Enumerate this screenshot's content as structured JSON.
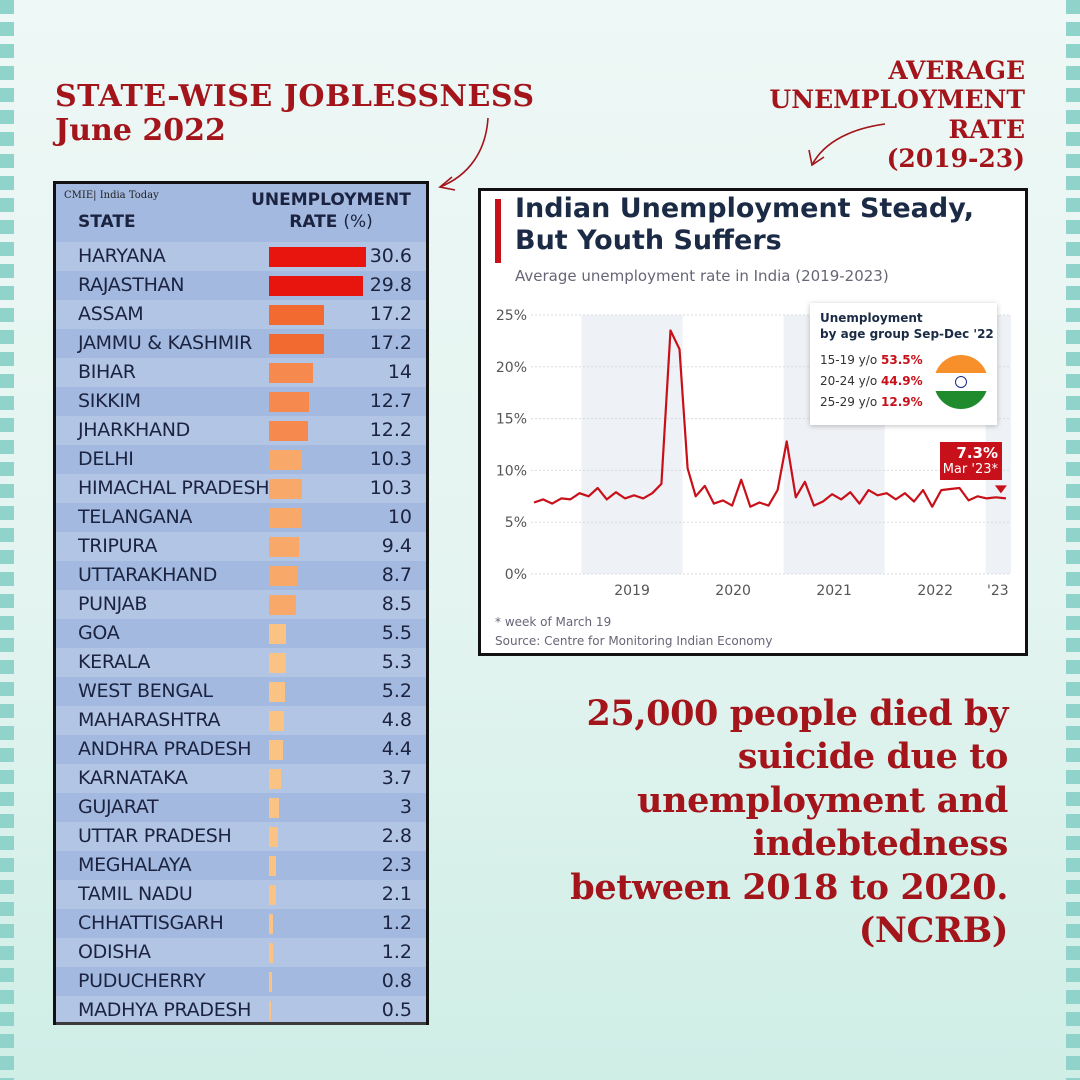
{
  "heading_left": {
    "line1": "STATE-WISE JOBLESSNESS",
    "line2": "June 2022"
  },
  "heading_right": {
    "line1": "AVERAGE",
    "line2": "UNEMPLOYMENT",
    "line3": "RATE",
    "line4": "(2019-23)"
  },
  "colors": {
    "accent_red": "#a3141b",
    "chart_red": "#c8101a",
    "panel_blue": "#a3b9df",
    "border_teal": "#8fd3cb"
  },
  "chart_data": [
    {
      "type": "bar",
      "orientation": "horizontal",
      "source": "CMIE| India Today",
      "header_state": "STATE",
      "header_rate_line1": "UNEMPLOYMENT",
      "header_rate_line2": "RATE",
      "header_rate_unit": "(%)",
      "categories": [
        "HARYANA",
        "RAJASTHAN",
        "ASSAM",
        "JAMMU & KASHMIR",
        "BIHAR",
        "SIKKIM",
        "JHARKHAND",
        "DELHI",
        "HIMACHAL PRADESH",
        "TELANGANA",
        "TRIPURA",
        "UTTARAKHAND",
        "PUNJAB",
        "GOA",
        "KERALA",
        "WEST BENGAL",
        "MAHARASHTRA",
        "ANDHRA PRADESH",
        "KARNATAKA",
        "GUJARAT",
        "UTTAR PRADESH",
        "MEGHALAYA",
        "TAMIL NADU",
        "CHHATTISGARH",
        "ODISHA",
        "PUDUCHERRY",
        "MADHYA PRADESH"
      ],
      "values": [
        "30.6",
        "29.8",
        "17.2",
        "17.2",
        "14",
        "12.7",
        "12.2",
        "10.3",
        "10.3",
        "10",
        "9.4",
        "8.7",
        "8.5",
        "5.5",
        "5.3",
        "5.2",
        "4.8",
        "4.4",
        "3.7",
        "3",
        "2.8",
        "2.3",
        "2.1",
        "1.2",
        "1.2",
        "0.8",
        "0.5"
      ]
    },
    {
      "type": "line",
      "title": "Indian Unemployment Steady,",
      "title2": "But Youth Suffers",
      "subtitle": "Average unemployment rate in India (2019-2023)",
      "footnote": "* week of March 19",
      "source": "Source: Centre for Monitoring Indian Economy",
      "ylim": [
        0,
        25
      ],
      "y_ticks": [
        "0%",
        "5%",
        "10%",
        "15%",
        "20%",
        "25%"
      ],
      "x_ticks": [
        "2019",
        "2020",
        "2021",
        "2022",
        "'23"
      ],
      "x_range": [
        2018.5,
        2023.25
      ],
      "x": [
        2018.53,
        2018.62,
        2018.71,
        2018.8,
        2018.89,
        2018.98,
        2019.07,
        2019.16,
        2019.25,
        2019.34,
        2019.43,
        2019.52,
        2019.61,
        2019.7,
        2019.79,
        2019.88,
        2019.97,
        2020.05,
        2020.13,
        2020.22,
        2020.31,
        2020.4,
        2020.49,
        2020.58,
        2020.67,
        2020.76,
        2020.85,
        2020.94,
        2021.03,
        2021.12,
        2021.21,
        2021.3,
        2021.39,
        2021.48,
        2021.57,
        2021.66,
        2021.75,
        2021.84,
        2021.93,
        2022.02,
        2022.11,
        2022.2,
        2022.29,
        2022.38,
        2022.47,
        2022.56,
        2022.65,
        2022.74,
        2022.83,
        2022.92,
        2023.01,
        2023.1,
        2023.2
      ],
      "y": [
        6.9,
        7.2,
        6.8,
        7.3,
        7.2,
        7.8,
        7.5,
        8.3,
        7.2,
        7.9,
        7.3,
        7.6,
        7.3,
        7.8,
        8.7,
        23.5,
        21.7,
        10.2,
        7.5,
        8.5,
        6.8,
        7.1,
        6.6,
        9.1,
        6.5,
        6.9,
        6.6,
        8.1,
        12.8,
        7.4,
        8.9,
        6.6,
        7.0,
        7.7,
        7.2,
        7.9,
        6.8,
        8.1,
        7.6,
        7.8,
        7.2,
        7.8,
        7.0,
        8.1,
        6.5,
        8.1,
        8.2,
        8.3,
        7.1,
        7.5,
        7.3,
        7.4,
        7.3
      ],
      "callout_value": "7.3%",
      "callout_date": "Mar '23*",
      "legend": {
        "title_line1": "Unemployment",
        "title_line2": "by age group Sep-Dec '22",
        "groups": [
          {
            "label": "15-19 y/o",
            "value": "53.5%"
          },
          {
            "label": "20-24 y/o",
            "value": "44.9%"
          },
          {
            "label": "25-29 y/o",
            "value": "12.9%"
          }
        ]
      }
    }
  ],
  "quote": {
    "line1": "25,000 people died by",
    "line2": "suicide due to",
    "line3": "unemployment and",
    "line4": "indebtedness",
    "line5": "between 2018 to 2020.",
    "line6": "(NCRB)"
  }
}
